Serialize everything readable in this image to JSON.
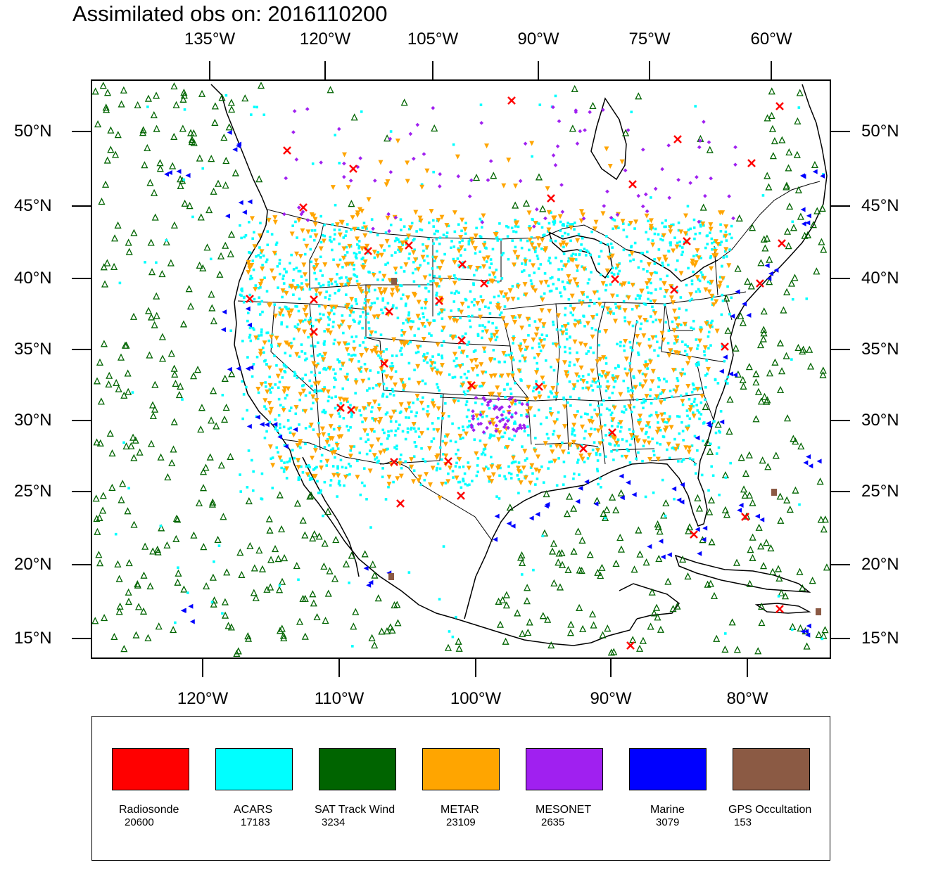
{
  "title": "Assimilated obs on: 2016110200",
  "map": {
    "top_axis_labels": [
      "135°W",
      "120°W",
      "105°W",
      "90°W",
      "75°W",
      "60°W"
    ],
    "bottom_axis_labels": [
      "120°W",
      "110°W",
      "100°W",
      "90°W",
      "80°W"
    ],
    "lat_labels": [
      "50°N",
      "45°N",
      "40°N",
      "35°N",
      "30°N",
      "25°N",
      "20°N",
      "15°N"
    ],
    "extent": {
      "lon_min": -128,
      "lon_max": -74,
      "lat_min": 14,
      "lat_max": 54
    }
  },
  "legend": [
    {
      "name": "Radiosonde",
      "count": "20600",
      "color": "#ff0000",
      "marker": "x-cross"
    },
    {
      "name": "ACARS",
      "count": "17183",
      "color": "#00ffff",
      "marker": "dot"
    },
    {
      "name": "SAT Track Wind",
      "count": "3234",
      "color": "#006400",
      "marker": "open-triangle"
    },
    {
      "name": "METAR",
      "count": "23109",
      "color": "#ffa500",
      "marker": "down-triangle"
    },
    {
      "name": "MESONET",
      "count": "2635",
      "color": "#a020f0",
      "marker": "diamond"
    },
    {
      "name": "Marine",
      "count": "3079",
      "color": "#0000ff",
      "marker": "left-triangle"
    },
    {
      "name": "GPS Occultation",
      "count": "153",
      "color": "#8b5a44",
      "marker": "square"
    }
  ]
}
